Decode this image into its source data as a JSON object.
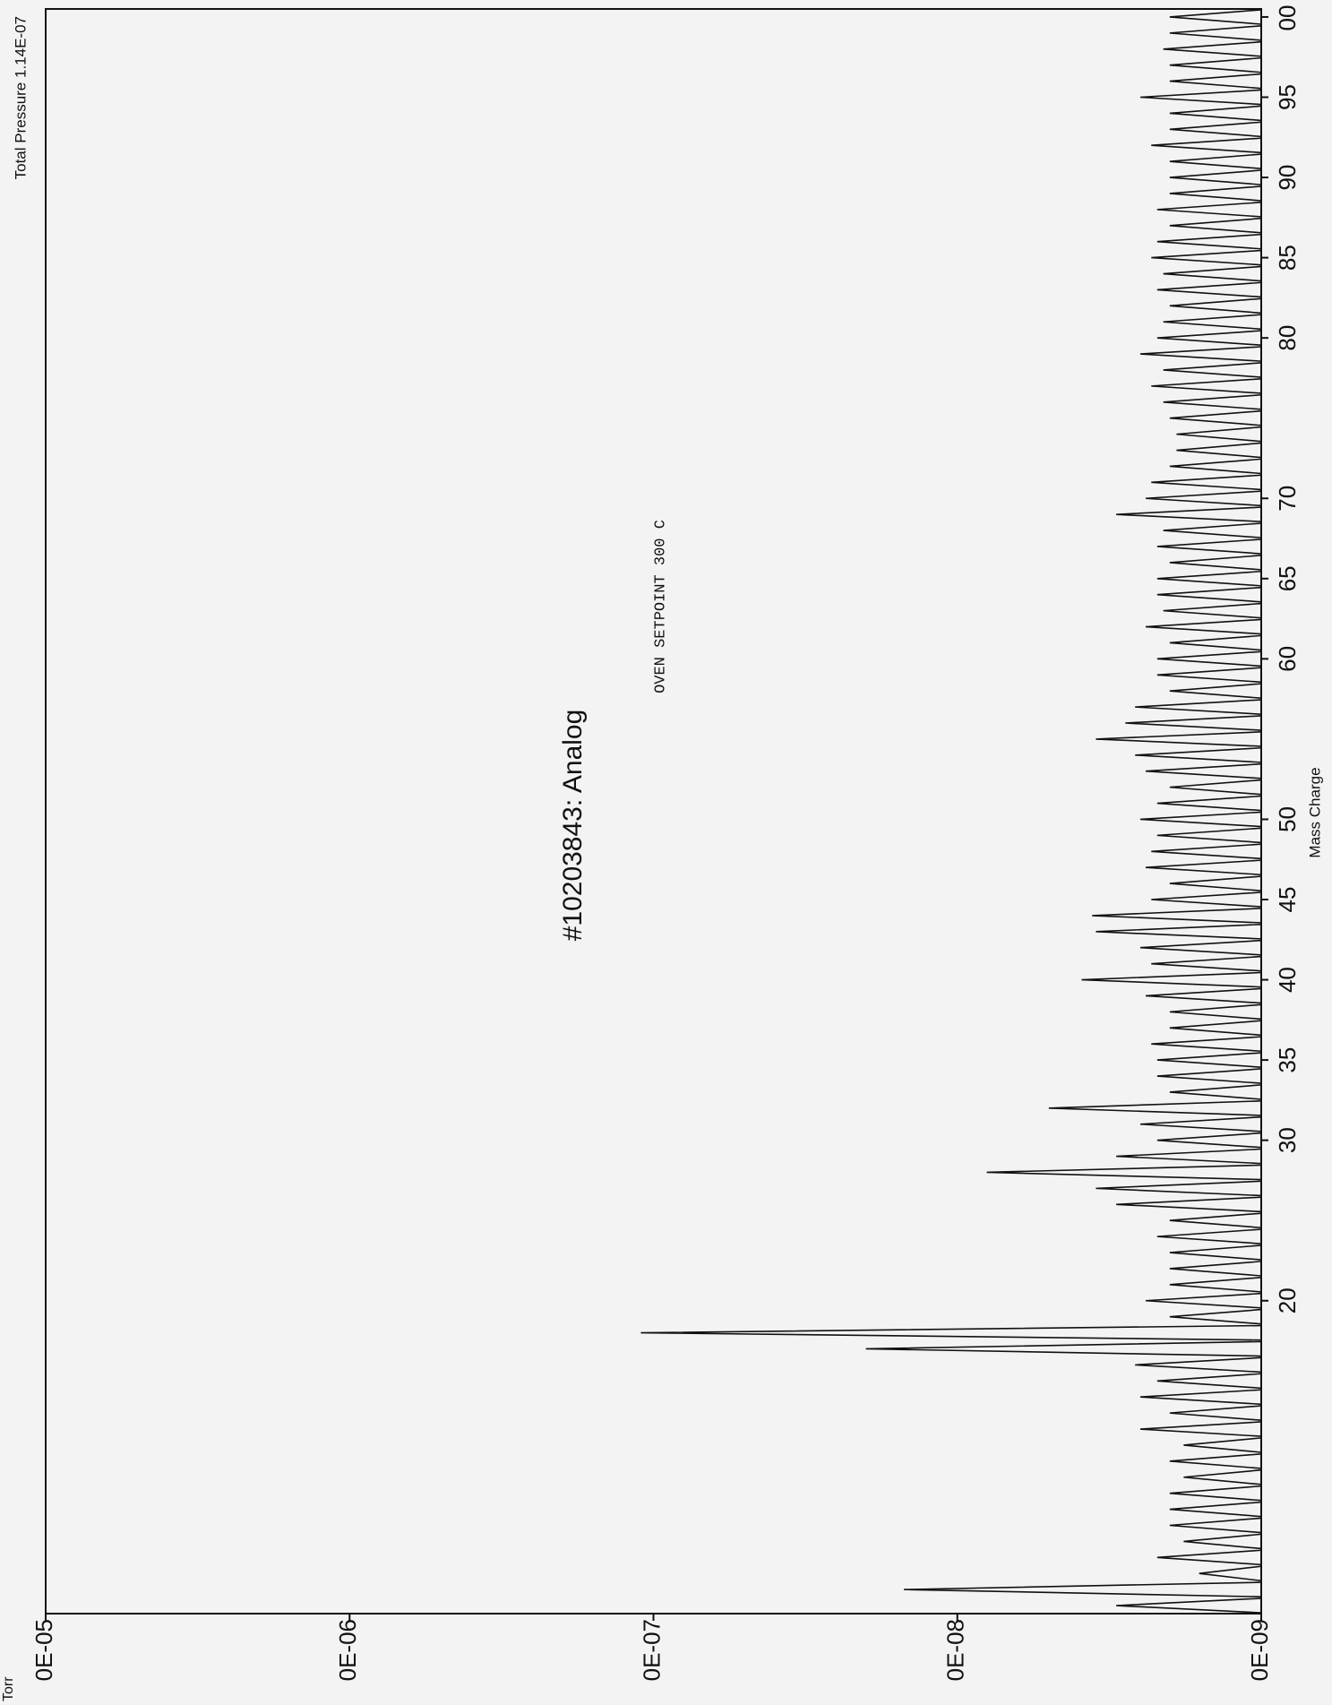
{
  "chart_data": {
    "type": "spectrum",
    "title": "#10203843: Analog",
    "subtitle": "Total Pressure  1.14E-07",
    "y_unit": "Torr",
    "x_label": "Mass  Charge",
    "annotations": [
      "OVEN SETPOINT 300 C"
    ],
    "color": "#111111",
    "log_y": true,
    "xlim": [
      0.5,
      100.5
    ],
    "ylim": [
      1e-09,
      1e-05
    ],
    "xticks": [
      20,
      30,
      35,
      40,
      45,
      50,
      60,
      65,
      70,
      80,
      85,
      90,
      95,
      {
        "value": 100,
        "label": "00"
      }
    ],
    "yticks": [
      {
        "value": 1e-05,
        "label": "0E-05"
      },
      {
        "value": 1e-06,
        "label": "0E-06"
      },
      {
        "value": 1e-07,
        "label": "0E-07"
      },
      {
        "value": 1e-08,
        "label": "0E-08"
      },
      {
        "value": 1e-09,
        "label": "0E-09"
      }
    ],
    "x": [
      1,
      2,
      3,
      4,
      5,
      6,
      7,
      8,
      9,
      10,
      11,
      12,
      13,
      14,
      15,
      16,
      17,
      18,
      19,
      20,
      21,
      22,
      23,
      24,
      25,
      26,
      27,
      28,
      29,
      30,
      31,
      32,
      33,
      34,
      35,
      36,
      37,
      38,
      39,
      40,
      41,
      42,
      43,
      44,
      45,
      46,
      47,
      48,
      49,
      50,
      51,
      52,
      53,
      54,
      55,
      56,
      57,
      58,
      59,
      60,
      61,
      62,
      63,
      64,
      65,
      66,
      67,
      68,
      69,
      70,
      71,
      72,
      73,
      74,
      75,
      76,
      77,
      78,
      79,
      80,
      81,
      82,
      83,
      84,
      85,
      86,
      87,
      88,
      89,
      90,
      91,
      92,
      93,
      94,
      95,
      96,
      97,
      98,
      99,
      100
    ],
    "values": [
      3e-09,
      1.5e-08,
      1.6e-09,
      2.2e-09,
      1.8e-09,
      2e-09,
      2e-09,
      2e-09,
      1.8e-09,
      2e-09,
      1.8e-09,
      2.5e-09,
      2e-09,
      2.5e-09,
      2.2e-09,
      2.6e-09,
      2e-08,
      1.1e-07,
      2e-09,
      2.4e-09,
      2e-09,
      2e-09,
      2e-09,
      2.2e-09,
      2e-09,
      3e-09,
      3.5e-09,
      8e-09,
      3e-09,
      2.2e-09,
      2.5e-09,
      5e-09,
      2e-09,
      2.2e-09,
      2.2e-09,
      2.3e-09,
      2e-09,
      2e-09,
      2.4e-09,
      3.9e-09,
      2.3e-09,
      2.5e-09,
      3.5e-09,
      3.6e-09,
      2.3e-09,
      2e-09,
      2.4e-09,
      2.3e-09,
      2.2e-09,
      2.5e-09,
      2.2e-09,
      2e-09,
      2.4e-09,
      2.6e-09,
      3.5e-09,
      2.8e-09,
      2.6e-09,
      2e-09,
      2.2e-09,
      2.2e-09,
      2e-09,
      2.4e-09,
      2.1e-09,
      2.2e-09,
      2.2e-09,
      2e-09,
      2.2e-09,
      2.1e-09,
      3e-09,
      2.4e-09,
      2.3e-09,
      2e-09,
      1.9e-09,
      1.9e-09,
      2e-09,
      2.1e-09,
      2.3e-09,
      2.1e-09,
      2.5e-09,
      2.2e-09,
      2.1e-09,
      2e-09,
      2.2e-09,
      2.1e-09,
      2.3e-09,
      2.2e-09,
      2e-09,
      2.2e-09,
      2e-09,
      2e-09,
      2e-09,
      2.3e-09,
      2e-09,
      2e-09,
      2.5e-09,
      2e-09,
      2e-09,
      2.1e-09,
      2e-09,
      2e-09
    ]
  }
}
